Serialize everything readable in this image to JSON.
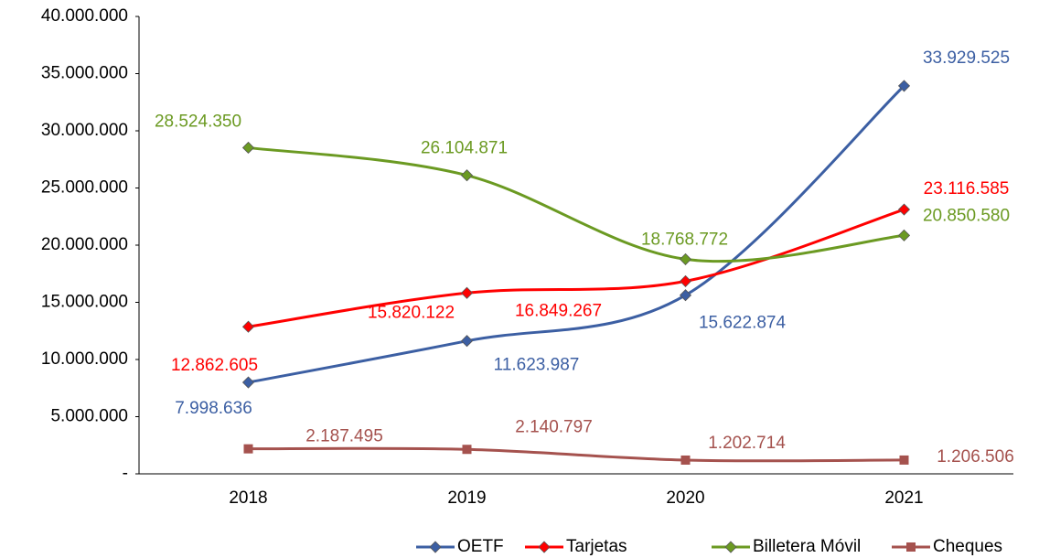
{
  "chart_data": {
    "type": "line",
    "categories": [
      "2018",
      "2019",
      "2020",
      "2021"
    ],
    "ylim": [
      0,
      40000000
    ],
    "yticks": [
      {
        "value": 0,
        "label": "-"
      },
      {
        "value": 5000000,
        "label": "5.000.000"
      },
      {
        "value": 10000000,
        "label": "10.000.000"
      },
      {
        "value": 15000000,
        "label": "15.000.000"
      },
      {
        "value": 20000000,
        "label": "20.000.000"
      },
      {
        "value": 25000000,
        "label": "25.000.000"
      },
      {
        "value": 30000000,
        "label": "30.000.000"
      },
      {
        "value": 35000000,
        "label": "35.000.000"
      },
      {
        "value": 40000000,
        "label": "40.000.000"
      }
    ],
    "smooth": true,
    "legend": "bottom",
    "series": [
      {
        "name": "OETF",
        "color": "#3c5fa3",
        "marker": "diamond",
        "values": [
          7998636,
          11623987,
          15622874,
          33929525
        ],
        "value_labels": [
          "7.998.636",
          "11.623.987",
          "15.622.874",
          "33.929.525"
        ]
      },
      {
        "name": "Tarjetas",
        "color": "#ff0000",
        "marker": "diamond",
        "values": [
          12862605,
          15820122,
          16849267,
          23116585
        ],
        "value_labels": [
          "12.862.605",
          "15.820.122",
          "16.849.267",
          "23.116.585"
        ]
      },
      {
        "name": "Billetera Móvil",
        "color": "#6b9a22",
        "marker": "diamond",
        "values": [
          28524350,
          26104871,
          18768772,
          20850580
        ],
        "value_labels": [
          "28.524.350",
          "26.104.871",
          "18.768.772",
          "20.850.580"
        ]
      },
      {
        "name": "Cheques",
        "color": "#a5524e",
        "marker": "square",
        "values": [
          2187495,
          2140797,
          1202714,
          1206506
        ],
        "value_labels": [
          "2.187.495",
          "2.140.797",
          "1.202.714",
          "1.206.506"
        ]
      }
    ]
  }
}
